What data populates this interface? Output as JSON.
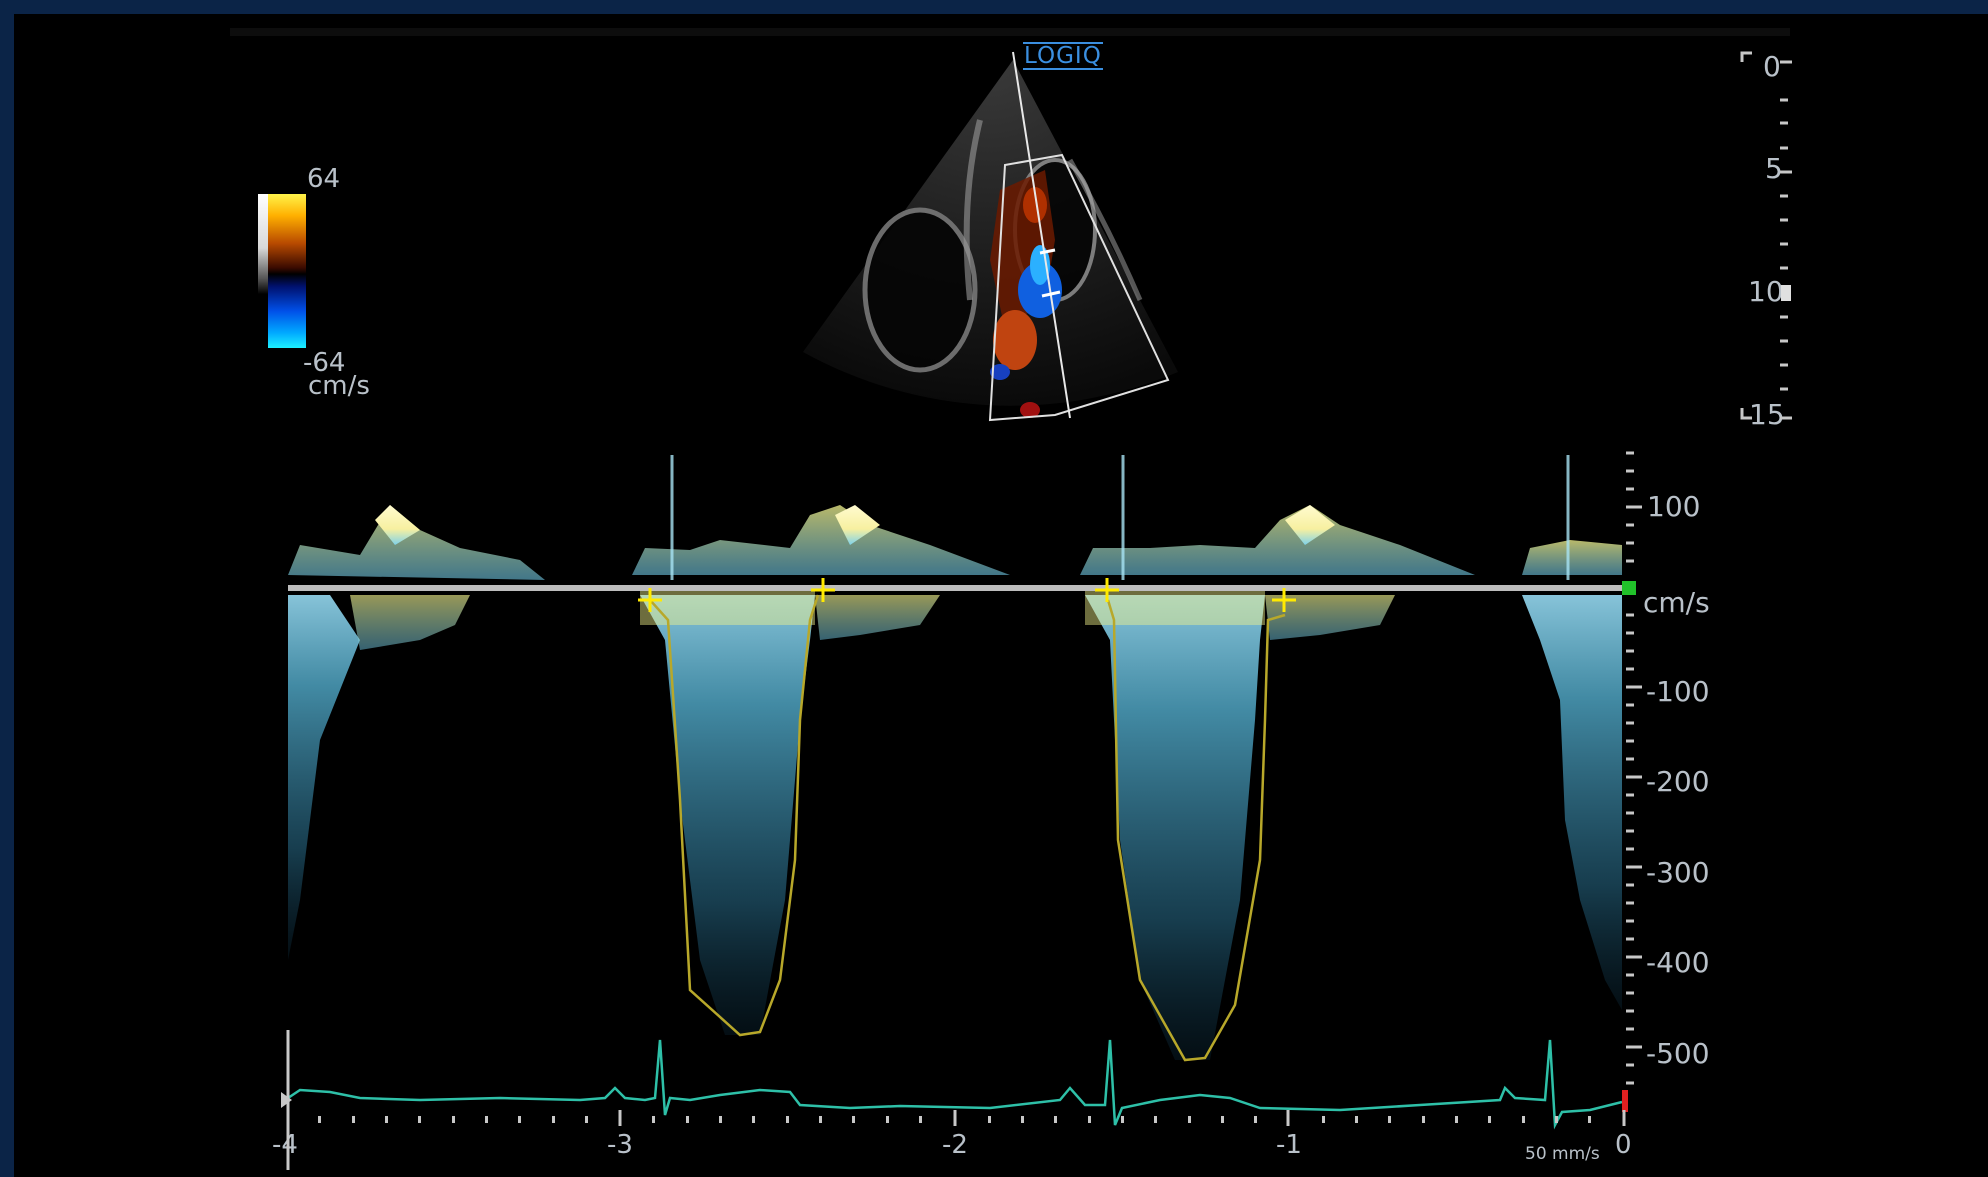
{
  "logo": "LOGIQ",
  "color_scale": {
    "max": "64",
    "min": "-64",
    "unit": "cm/s"
  },
  "depth_scale": {
    "labels": [
      "0",
      "5",
      "10",
      "15"
    ]
  },
  "velocity_scale": {
    "labels": [
      "100",
      "cm/s",
      "-100",
      "-200",
      "-300",
      "-400",
      "-500"
    ]
  },
  "time_axis": {
    "labels": [
      "-4",
      "-3",
      "-2",
      "-1",
      "0"
    ],
    "sweep_speed": "50 mm/s"
  },
  "colors": {
    "background": "#000000",
    "border": "#0b2447",
    "doppler_spectrum": "#8fd8f0",
    "trace": "#b8a82a",
    "ecg": "#2ec0a8",
    "cursor": "#ffea00",
    "baseline": "#bdbdbd"
  }
}
